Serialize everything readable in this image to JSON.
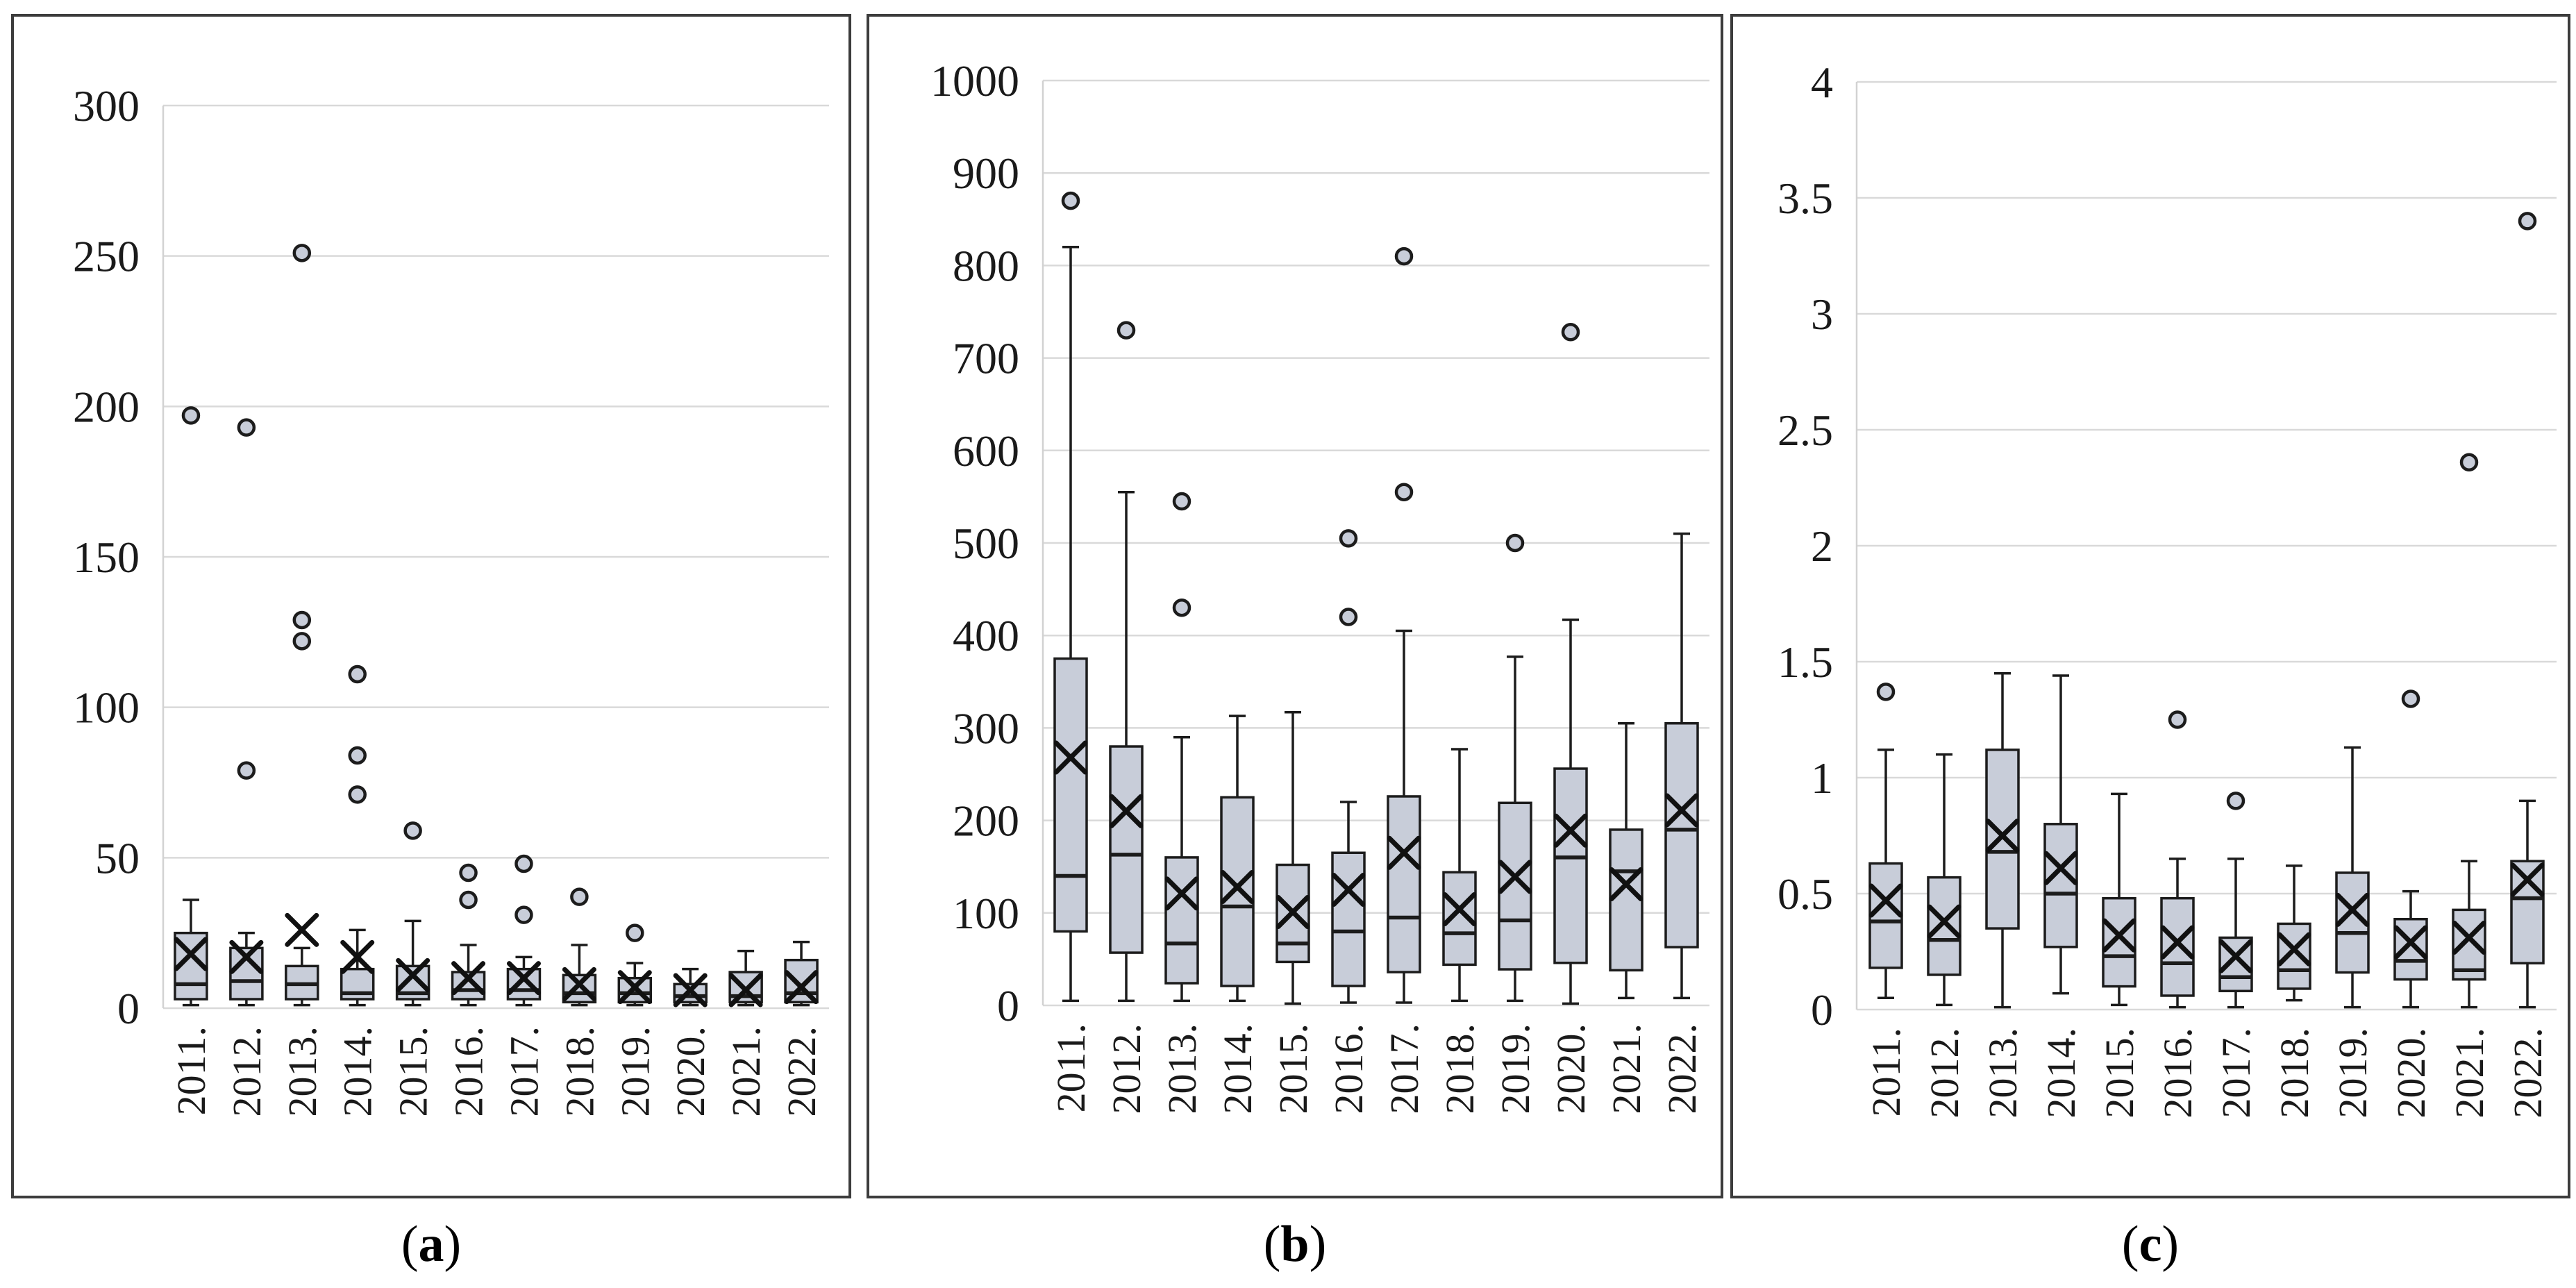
{
  "figure": {
    "colors": {
      "box_fill": "#c8cdd9",
      "box_stroke": "#1c1c1c",
      "mean_marker": "#111111",
      "outlier_fill": "#c8cdd9",
      "gridline": "#d9d9d9",
      "axis_line": "#d2d2d2",
      "panel_border": "#3c3c3c",
      "background": "#ffffff",
      "tick_text": "#1a1a1a"
    },
    "marker_glyphs": {
      "mean": "x-cross-marker",
      "outlier": "circle-marker"
    }
  },
  "chart_data": [
    {
      "panel_id": "a",
      "type": "boxplot",
      "caption": {
        "open": "(",
        "letter": "a",
        "close": ")"
      },
      "x_tick_labels": [
        "2011.",
        "2012.",
        "2013.",
        "2014.",
        "2015.",
        "2016.",
        "2017.",
        "2018.",
        "2019.",
        "2020.",
        "2021.",
        "2022."
      ],
      "y_axis": {
        "min": 0,
        "max": 300,
        "tick_step": 50,
        "tick_labels": [
          "0",
          "50",
          "100",
          "150",
          "200",
          "250",
          "300"
        ]
      },
      "grid": true,
      "boxes": [
        {
          "category": "2011.",
          "whisker_low": 1,
          "q1": 3,
          "median": 8,
          "mean": 18,
          "q3": 25,
          "whisker_high": 36,
          "outliers": [
            197
          ]
        },
        {
          "category": "2012.",
          "whisker_low": 1,
          "q1": 3,
          "median": 9,
          "mean": 17,
          "q3": 20,
          "whisker_high": 25,
          "outliers": [
            193,
            79
          ]
        },
        {
          "category": "2013.",
          "whisker_low": 1,
          "q1": 3,
          "median": 8,
          "mean": 26,
          "q3": 14,
          "whisker_high": 20,
          "outliers": [
            251,
            129,
            122
          ]
        },
        {
          "category": "2014.",
          "whisker_low": 1,
          "q1": 3,
          "median": 5,
          "mean": 17,
          "q3": 13,
          "whisker_high": 26,
          "outliers": [
            111,
            84,
            71
          ]
        },
        {
          "category": "2015.",
          "whisker_low": 1,
          "q1": 3,
          "median": 5,
          "mean": 11,
          "q3": 14,
          "whisker_high": 29,
          "outliers": [
            59
          ]
        },
        {
          "category": "2016.",
          "whisker_low": 1,
          "q1": 3,
          "median": 6,
          "mean": 10,
          "q3": 12,
          "whisker_high": 21,
          "outliers": [
            45,
            36
          ]
        },
        {
          "category": "2017.",
          "whisker_low": 1,
          "q1": 3,
          "median": 6,
          "mean": 10,
          "q3": 13,
          "whisker_high": 17,
          "outliers": [
            48,
            31
          ]
        },
        {
          "category": "2018.",
          "whisker_low": 1,
          "q1": 2,
          "median": 5,
          "mean": 8,
          "q3": 11,
          "whisker_high": 21,
          "outliers": [
            37
          ]
        },
        {
          "category": "2019.",
          "whisker_low": 1,
          "q1": 2,
          "median": 5,
          "mean": 7,
          "q3": 10,
          "whisker_high": 15,
          "outliers": [
            25
          ]
        },
        {
          "category": "2020.",
          "whisker_low": 1,
          "q1": 2,
          "median": 4,
          "mean": 6,
          "q3": 8,
          "whisker_high": 13,
          "outliers": []
        },
        {
          "category": "2021.",
          "whisker_low": 1,
          "q1": 2,
          "median": 4,
          "mean": 6,
          "q3": 12,
          "whisker_high": 19,
          "outliers": []
        },
        {
          "category": "2022.",
          "whisker_low": 1,
          "q1": 2,
          "median": 5,
          "mean": 7,
          "q3": 16,
          "whisker_high": 22,
          "outliers": []
        }
      ]
    },
    {
      "panel_id": "b",
      "type": "boxplot",
      "caption": {
        "open": "(",
        "letter": "b",
        "close": ")"
      },
      "x_tick_labels": [
        "2011.",
        "2012.",
        "2013.",
        "2014.",
        "2015.",
        "2016.",
        "2017.",
        "2018.",
        "2019.",
        "2020.",
        "2021.",
        "2022."
      ],
      "y_axis": {
        "min": 0,
        "max": 1000,
        "tick_step": 100,
        "tick_labels": [
          "0",
          "100",
          "200",
          "300",
          "400",
          "500",
          "600",
          "700",
          "800",
          "900",
          "1000"
        ]
      },
      "grid": true,
      "boxes": [
        {
          "category": "2011.",
          "whisker_low": 5,
          "q1": 80,
          "median": 140,
          "mean": 268,
          "q3": 375,
          "whisker_high": 820,
          "outliers": [
            870
          ]
        },
        {
          "category": "2012.",
          "whisker_low": 5,
          "q1": 57,
          "median": 163,
          "mean": 210,
          "q3": 280,
          "whisker_high": 555,
          "outliers": [
            730
          ]
        },
        {
          "category": "2013.",
          "whisker_low": 5,
          "q1": 24,
          "median": 67,
          "mean": 121,
          "q3": 160,
          "whisker_high": 290,
          "outliers": [
            545,
            430
          ]
        },
        {
          "category": "2014.",
          "whisker_low": 5,
          "q1": 21,
          "median": 107,
          "mean": 128,
          "q3": 225,
          "whisker_high": 313,
          "outliers": []
        },
        {
          "category": "2015.",
          "whisker_low": 2,
          "q1": 47,
          "median": 67,
          "mean": 101,
          "q3": 152,
          "whisker_high": 317,
          "outliers": []
        },
        {
          "category": "2016.",
          "whisker_low": 3,
          "q1": 21,
          "median": 80,
          "mean": 125,
          "q3": 165,
          "whisker_high": 220,
          "outliers": [
            505,
            420
          ]
        },
        {
          "category": "2017.",
          "whisker_low": 3,
          "q1": 36,
          "median": 95,
          "mean": 165,
          "q3": 226,
          "whisker_high": 405,
          "outliers": [
            810,
            555
          ]
        },
        {
          "category": "2018.",
          "whisker_low": 5,
          "q1": 44,
          "median": 78,
          "mean": 104,
          "q3": 144,
          "whisker_high": 277,
          "outliers": []
        },
        {
          "category": "2019.",
          "whisker_low": 5,
          "q1": 39,
          "median": 92,
          "mean": 139,
          "q3": 219,
          "whisker_high": 377,
          "outliers": [
            500
          ]
        },
        {
          "category": "2020.",
          "whisker_low": 2,
          "q1": 46,
          "median": 160,
          "mean": 189,
          "q3": 256,
          "whisker_high": 417,
          "outliers": [
            728
          ]
        },
        {
          "category": "2021.",
          "whisker_low": 8,
          "q1": 38,
          "median": 145,
          "mean": 131,
          "q3": 190,
          "whisker_high": 305,
          "outliers": []
        },
        {
          "category": "2022.",
          "whisker_low": 8,
          "q1": 63,
          "median": 190,
          "mean": 211,
          "q3": 305,
          "whisker_high": 510,
          "outliers": []
        }
      ]
    },
    {
      "panel_id": "c",
      "type": "boxplot",
      "caption": {
        "open": "(",
        "letter": "c",
        "close": ")"
      },
      "x_tick_labels": [
        "2011.",
        "2012.",
        "2013.",
        "2014.",
        "2015.",
        "2016.",
        "2017.",
        "2018.",
        "2019.",
        "2020.",
        "2021.",
        "2022."
      ],
      "y_axis": {
        "min": 0,
        "max": 4,
        "tick_step": 0.5,
        "tick_labels": [
          "0",
          "0.5",
          "1",
          "1.5",
          "2",
          "2.5",
          "3",
          "3.5",
          "4"
        ]
      },
      "grid": true,
      "boxes": [
        {
          "category": "2011.",
          "whisker_low": 0.05,
          "q1": 0.18,
          "median": 0.38,
          "mean": 0.47,
          "q3": 0.63,
          "whisker_high": 1.12,
          "outliers": [
            1.37
          ]
        },
        {
          "category": "2012.",
          "whisker_low": 0.02,
          "q1": 0.15,
          "median": 0.3,
          "mean": 0.38,
          "q3": 0.57,
          "whisker_high": 1.1,
          "outliers": []
        },
        {
          "category": "2013.",
          "whisker_low": 0.01,
          "q1": 0.35,
          "median": 0.68,
          "mean": 0.75,
          "q3": 1.12,
          "whisker_high": 1.45,
          "outliers": []
        },
        {
          "category": "2014.",
          "whisker_low": 0.07,
          "q1": 0.27,
          "median": 0.5,
          "mean": 0.61,
          "q3": 0.8,
          "whisker_high": 1.44,
          "outliers": []
        },
        {
          "category": "2015.",
          "whisker_low": 0.02,
          "q1": 0.1,
          "median": 0.23,
          "mean": 0.32,
          "q3": 0.48,
          "whisker_high": 0.93,
          "outliers": []
        },
        {
          "category": "2016.",
          "whisker_low": 0.01,
          "q1": 0.06,
          "median": 0.2,
          "mean": 0.29,
          "q3": 0.48,
          "whisker_high": 0.65,
          "outliers": [
            1.25
          ]
        },
        {
          "category": "2017.",
          "whisker_low": 0.01,
          "q1": 0.08,
          "median": 0.14,
          "mean": 0.23,
          "q3": 0.31,
          "whisker_high": 0.65,
          "outliers": [
            0.9
          ]
        },
        {
          "category": "2018.",
          "whisker_low": 0.04,
          "q1": 0.09,
          "median": 0.17,
          "mean": 0.26,
          "q3": 0.37,
          "whisker_high": 0.62,
          "outliers": []
        },
        {
          "category": "2019.",
          "whisker_low": 0.01,
          "q1": 0.16,
          "median": 0.33,
          "mean": 0.43,
          "q3": 0.59,
          "whisker_high": 1.13,
          "outliers": []
        },
        {
          "category": "2020.",
          "whisker_low": 0.01,
          "q1": 0.13,
          "median": 0.21,
          "mean": 0.29,
          "q3": 0.39,
          "whisker_high": 0.51,
          "outliers": [
            1.34
          ]
        },
        {
          "category": "2021.",
          "whisker_low": 0.01,
          "q1": 0.13,
          "median": 0.17,
          "mean": 0.31,
          "q3": 0.43,
          "whisker_high": 0.64,
          "outliers": [
            2.36
          ]
        },
        {
          "category": "2022.",
          "whisker_low": 0.01,
          "q1": 0.2,
          "median": 0.48,
          "mean": 0.56,
          "q3": 0.64,
          "whisker_high": 0.9,
          "outliers": [
            3.4
          ]
        }
      ]
    }
  ]
}
